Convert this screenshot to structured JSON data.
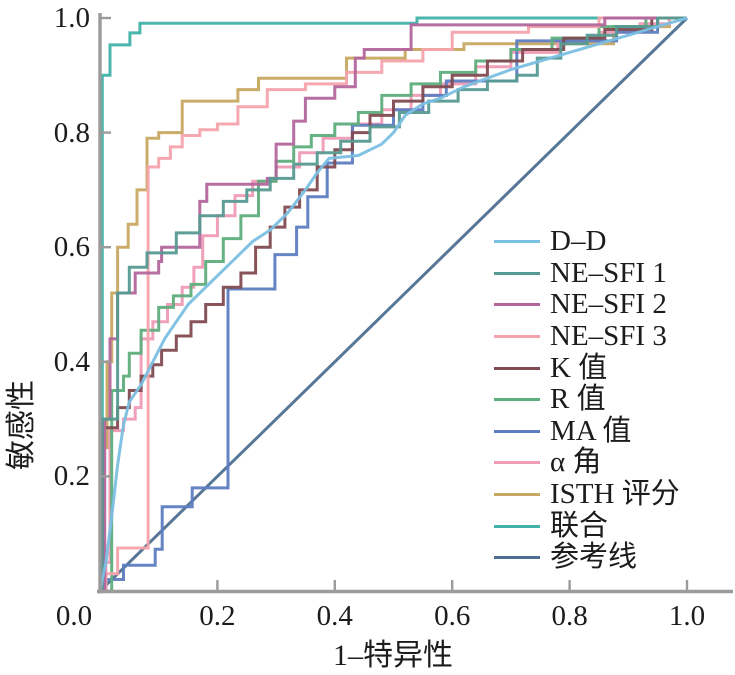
{
  "page": {
    "background": "#ffffff",
    "text_color": "#1c1c1c"
  },
  "axes": {
    "axis_color": "#9b9b9b",
    "x_label": "1–特异性",
    "y_label": "敏感性",
    "x_ticks": [
      "0.0",
      "0.2",
      "0.4",
      "0.6",
      "0.8",
      "1.0"
    ],
    "y_ticks": [
      "0.0",
      "0.2",
      "0.4",
      "0.6",
      "0.8",
      "1.0"
    ]
  },
  "chart_data": {
    "type": "line",
    "subtype": "ROC step curves",
    "title": "",
    "xlabel": "1–特异性",
    "ylabel": "敏感性",
    "xlim": [
      0,
      1
    ],
    "ylim": [
      0,
      1
    ],
    "grid": false,
    "legend_position": "right-middle",
    "point_format": "[1-specificity, sensitivity reached at that x]",
    "series": [
      {
        "name": "D–D",
        "color": "#7bbfe2",
        "kind": "smooth",
        "points": [
          [
            0,
            0
          ],
          [
            0.01,
            0.05
          ],
          [
            0.02,
            0.13
          ],
          [
            0.03,
            0.22
          ],
          [
            0.04,
            0.29
          ],
          [
            0.05,
            0.33
          ],
          [
            0.07,
            0.36
          ],
          [
            0.09,
            0.4
          ],
          [
            0.11,
            0.44
          ],
          [
            0.13,
            0.47
          ],
          [
            0.15,
            0.5
          ],
          [
            0.17,
            0.52
          ],
          [
            0.2,
            0.55
          ],
          [
            0.23,
            0.58
          ],
          [
            0.26,
            0.61
          ],
          [
            0.29,
            0.63
          ],
          [
            0.32,
            0.66
          ],
          [
            0.35,
            0.7
          ],
          [
            0.37,
            0.73
          ],
          [
            0.39,
            0.755
          ],
          [
            0.44,
            0.76
          ],
          [
            0.46,
            0.77
          ],
          [
            0.48,
            0.78
          ],
          [
            0.5,
            0.8
          ],
          [
            0.52,
            0.83
          ],
          [
            0.55,
            0.85
          ],
          [
            0.58,
            0.86
          ],
          [
            0.62,
            0.88
          ],
          [
            0.66,
            0.895
          ],
          [
            0.7,
            0.91
          ],
          [
            0.75,
            0.925
          ],
          [
            0.8,
            0.94
          ],
          [
            0.85,
            0.955
          ],
          [
            0.9,
            0.97
          ],
          [
            0.95,
            0.985
          ],
          [
            1,
            1
          ]
        ]
      },
      {
        "name": "NE–SFI 1",
        "color": "#569a91",
        "kind": "stairs",
        "points": [
          [
            0.004,
            0.3
          ],
          [
            0.03,
            0.52
          ],
          [
            0.05,
            0.565
          ],
          [
            0.08,
            0.59
          ],
          [
            0.13,
            0.625
          ],
          [
            0.17,
            0.655
          ],
          [
            0.21,
            0.68
          ],
          [
            0.25,
            0.7
          ],
          [
            0.29,
            0.72
          ],
          [
            0.33,
            0.745
          ],
          [
            0.37,
            0.765
          ],
          [
            0.41,
            0.785
          ],
          [
            0.46,
            0.81
          ],
          [
            0.51,
            0.835
          ],
          [
            0.56,
            0.855
          ],
          [
            0.61,
            0.875
          ],
          [
            0.66,
            0.89
          ],
          [
            0.71,
            0.9
          ],
          [
            0.745,
            0.93
          ],
          [
            0.785,
            0.955
          ],
          [
            0.83,
            0.97
          ],
          [
            0.88,
            0.985
          ],
          [
            0.95,
            1
          ]
        ]
      },
      {
        "name": "NE–SFI 2",
        "color": "#b3669c",
        "kind": "stairs",
        "points": [
          [
            0.008,
            0.3
          ],
          [
            0.017,
            0.44
          ],
          [
            0.03,
            0.52
          ],
          [
            0.06,
            0.555
          ],
          [
            0.1,
            0.575
          ],
          [
            0.105,
            0.6
          ],
          [
            0.17,
            0.68
          ],
          [
            0.182,
            0.71
          ],
          [
            0.285,
            0.72
          ],
          [
            0.3,
            0.78
          ],
          [
            0.33,
            0.82
          ],
          [
            0.35,
            0.86
          ],
          [
            0.4,
            0.88
          ],
          [
            0.435,
            0.93
          ],
          [
            0.45,
            0.945
          ],
          [
            0.53,
            0.988
          ],
          [
            0.86,
            1
          ]
        ]
      },
      {
        "name": "NE–SFI 3",
        "color": "#f4a3ac",
        "kind": "stairs",
        "points": [
          [
            0.01,
            0.03
          ],
          [
            0.03,
            0.075
          ],
          [
            0.082,
            0.74
          ],
          [
            0.1,
            0.755
          ],
          [
            0.12,
            0.775
          ],
          [
            0.14,
            0.795
          ],
          [
            0.17,
            0.805
          ],
          [
            0.2,
            0.815
          ],
          [
            0.235,
            0.845
          ],
          [
            0.285,
            0.875
          ],
          [
            0.35,
            0.885
          ],
          [
            0.42,
            0.905
          ],
          [
            0.48,
            0.925
          ],
          [
            0.55,
            0.945
          ],
          [
            0.6,
            0.975
          ],
          [
            0.73,
            0.985
          ],
          [
            0.85,
            1
          ]
        ]
      },
      {
        "name": "K 值",
        "color": "#814b51",
        "kind": "stairs",
        "points": [
          [
            0.005,
            0.285
          ],
          [
            0.03,
            0.32
          ],
          [
            0.05,
            0.35
          ],
          [
            0.07,
            0.375
          ],
          [
            0.09,
            0.395
          ],
          [
            0.105,
            0.42
          ],
          [
            0.13,
            0.445
          ],
          [
            0.155,
            0.47
          ],
          [
            0.18,
            0.5
          ],
          [
            0.21,
            0.53
          ],
          [
            0.24,
            0.555
          ],
          [
            0.265,
            0.6
          ],
          [
            0.29,
            0.635
          ],
          [
            0.315,
            0.67
          ],
          [
            0.34,
            0.7
          ],
          [
            0.37,
            0.74
          ],
          [
            0.4,
            0.77
          ],
          [
            0.43,
            0.8
          ],
          [
            0.46,
            0.83
          ],
          [
            0.5,
            0.855
          ],
          [
            0.55,
            0.88
          ],
          [
            0.6,
            0.9
          ],
          [
            0.66,
            0.925
          ],
          [
            0.72,
            0.945
          ],
          [
            0.79,
            0.965
          ],
          [
            0.86,
            0.98
          ],
          [
            0.94,
            1
          ]
        ]
      },
      {
        "name": "R 值",
        "color": "#5fae7d",
        "kind": "stairs",
        "points": [
          [
            0.02,
            0.35
          ],
          [
            0.04,
            0.375
          ],
          [
            0.05,
            0.415
          ],
          [
            0.07,
            0.455
          ],
          [
            0.1,
            0.495
          ],
          [
            0.125,
            0.515
          ],
          [
            0.155,
            0.535
          ],
          [
            0.18,
            0.575
          ],
          [
            0.21,
            0.615
          ],
          [
            0.24,
            0.655
          ],
          [
            0.27,
            0.715
          ],
          [
            0.3,
            0.75
          ],
          [
            0.33,
            0.775
          ],
          [
            0.36,
            0.795
          ],
          [
            0.4,
            0.815
          ],
          [
            0.44,
            0.835
          ],
          [
            0.48,
            0.865
          ],
          [
            0.53,
            0.885
          ],
          [
            0.58,
            0.905
          ],
          [
            0.64,
            0.925
          ],
          [
            0.7,
            0.945
          ],
          [
            0.77,
            0.965
          ],
          [
            0.85,
            0.985
          ],
          [
            0.93,
            1
          ]
        ]
      },
      {
        "name": "MA 值",
        "color": "#5d7dc1",
        "kind": "stairs",
        "points": [
          [
            0.01,
            0.02
          ],
          [
            0.04,
            0.045
          ],
          [
            0.094,
            0.073
          ],
          [
            0.106,
            0.147
          ],
          [
            0.157,
            0.18
          ],
          [
            0.218,
            0.527
          ],
          [
            0.298,
            0.587
          ],
          [
            0.335,
            0.635
          ],
          [
            0.354,
            0.688
          ],
          [
            0.387,
            0.747
          ],
          [
            0.43,
            0.813
          ],
          [
            0.5,
            0.84
          ],
          [
            0.55,
            0.865
          ],
          [
            0.59,
            0.89
          ],
          [
            0.71,
            0.96
          ],
          [
            0.88,
            0.975
          ],
          [
            0.95,
            1
          ]
        ]
      },
      {
        "name": "α 角",
        "color": "#ef9cb5",
        "kind": "stairs",
        "points": [
          [
            0.01,
            0.05
          ],
          [
            0.017,
            0.28
          ],
          [
            0.04,
            0.3
          ],
          [
            0.06,
            0.32
          ],
          [
            0.07,
            0.44
          ],
          [
            0.09,
            0.47
          ],
          [
            0.115,
            0.5
          ],
          [
            0.14,
            0.53
          ],
          [
            0.16,
            0.565
          ],
          [
            0.175,
            0.62
          ],
          [
            0.2,
            0.655
          ],
          [
            0.23,
            0.69
          ],
          [
            0.26,
            0.715
          ],
          [
            0.3,
            0.74
          ],
          [
            0.34,
            0.765
          ],
          [
            0.38,
            0.79
          ],
          [
            0.43,
            0.815
          ],
          [
            0.48,
            0.84
          ],
          [
            0.53,
            0.865
          ],
          [
            0.58,
            0.885
          ],
          [
            0.64,
            0.915
          ],
          [
            0.7,
            0.94
          ],
          [
            0.78,
            0.96
          ],
          [
            0.85,
            0.975
          ],
          [
            0.92,
            0.99
          ],
          [
            0.97,
            1
          ]
        ]
      },
      {
        "name": "ISTH 评分",
        "color": "#c8a963",
        "kind": "stairs",
        "points": [
          [
            0.005,
            0.25
          ],
          [
            0.012,
            0.4
          ],
          [
            0.02,
            0.52
          ],
          [
            0.03,
            0.6
          ],
          [
            0.048,
            0.64
          ],
          [
            0.063,
            0.7
          ],
          [
            0.08,
            0.79
          ],
          [
            0.1,
            0.8
          ],
          [
            0.14,
            0.855
          ],
          [
            0.235,
            0.875
          ],
          [
            0.27,
            0.895
          ],
          [
            0.42,
            0.93
          ],
          [
            0.52,
            0.945
          ],
          [
            0.62,
            0.955
          ],
          [
            0.875,
            0.985
          ],
          [
            0.97,
            1
          ]
        ]
      },
      {
        "name": "联合",
        "color": "#41b2a8",
        "kind": "stairs",
        "points": [
          [
            0.004,
            0.9
          ],
          [
            0.017,
            0.953
          ],
          [
            0.051,
            0.974
          ],
          [
            0.068,
            0.991
          ],
          [
            0.54,
            1
          ]
        ]
      },
      {
        "name": "参考线",
        "color": "#4e7090",
        "kind": "diagonal",
        "points": [
          [
            0,
            0
          ],
          [
            1,
            1
          ]
        ]
      }
    ]
  }
}
